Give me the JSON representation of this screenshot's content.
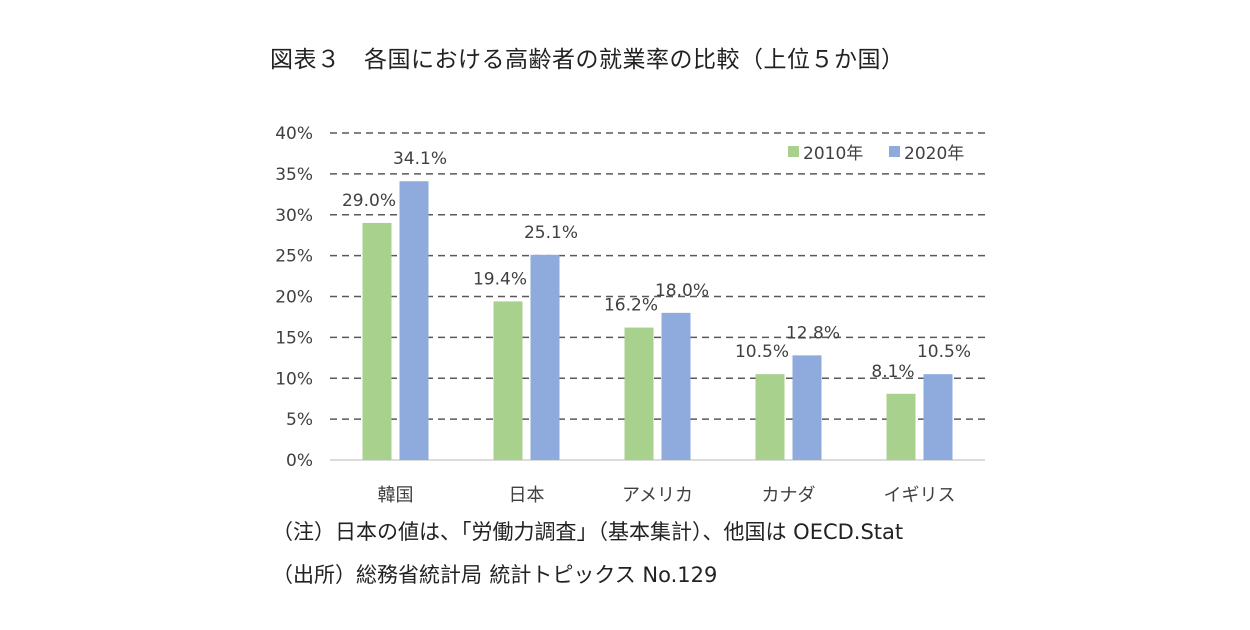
{
  "title": "図表３　各国における高齢者の就業率の比較（上位５か国）",
  "notes": {
    "note1": "（注）日本の値は、「労働力調査」（基本集計）、他国は OECD.Stat",
    "note2_a": "（出所）総務省統計局",
    "note2_b": "統計トピックス No.129"
  },
  "colors": {
    "series_2010": "#a9d18e",
    "series_2020": "#8faadc",
    "grid": "#595959"
  },
  "chart_data": {
    "type": "bar",
    "categories": [
      "韓国",
      "日本",
      "アメリカ",
      "カナダ",
      "イギリス"
    ],
    "series": [
      {
        "name": "2010年",
        "values": [
          29.0,
          19.4,
          16.2,
          10.5,
          8.1
        ],
        "labels": [
          "29.0%",
          "19.4%",
          "16.2%",
          "10.5%",
          "8.1%"
        ]
      },
      {
        "name": "2020年",
        "values": [
          34.1,
          25.1,
          18.0,
          12.8,
          10.5
        ],
        "labels": [
          "34.1%",
          "25.1%",
          "18.0%",
          "12.8%",
          "10.5%"
        ]
      }
    ],
    "ylim": [
      0,
      40
    ],
    "yticks": [
      0,
      5,
      10,
      15,
      20,
      25,
      30,
      35,
      40
    ],
    "ytick_labels": [
      "0%",
      "5%",
      "10%",
      "15%",
      "20%",
      "25%",
      "30%",
      "35%",
      "40%"
    ],
    "grid": true,
    "legend_position": "top-right"
  }
}
